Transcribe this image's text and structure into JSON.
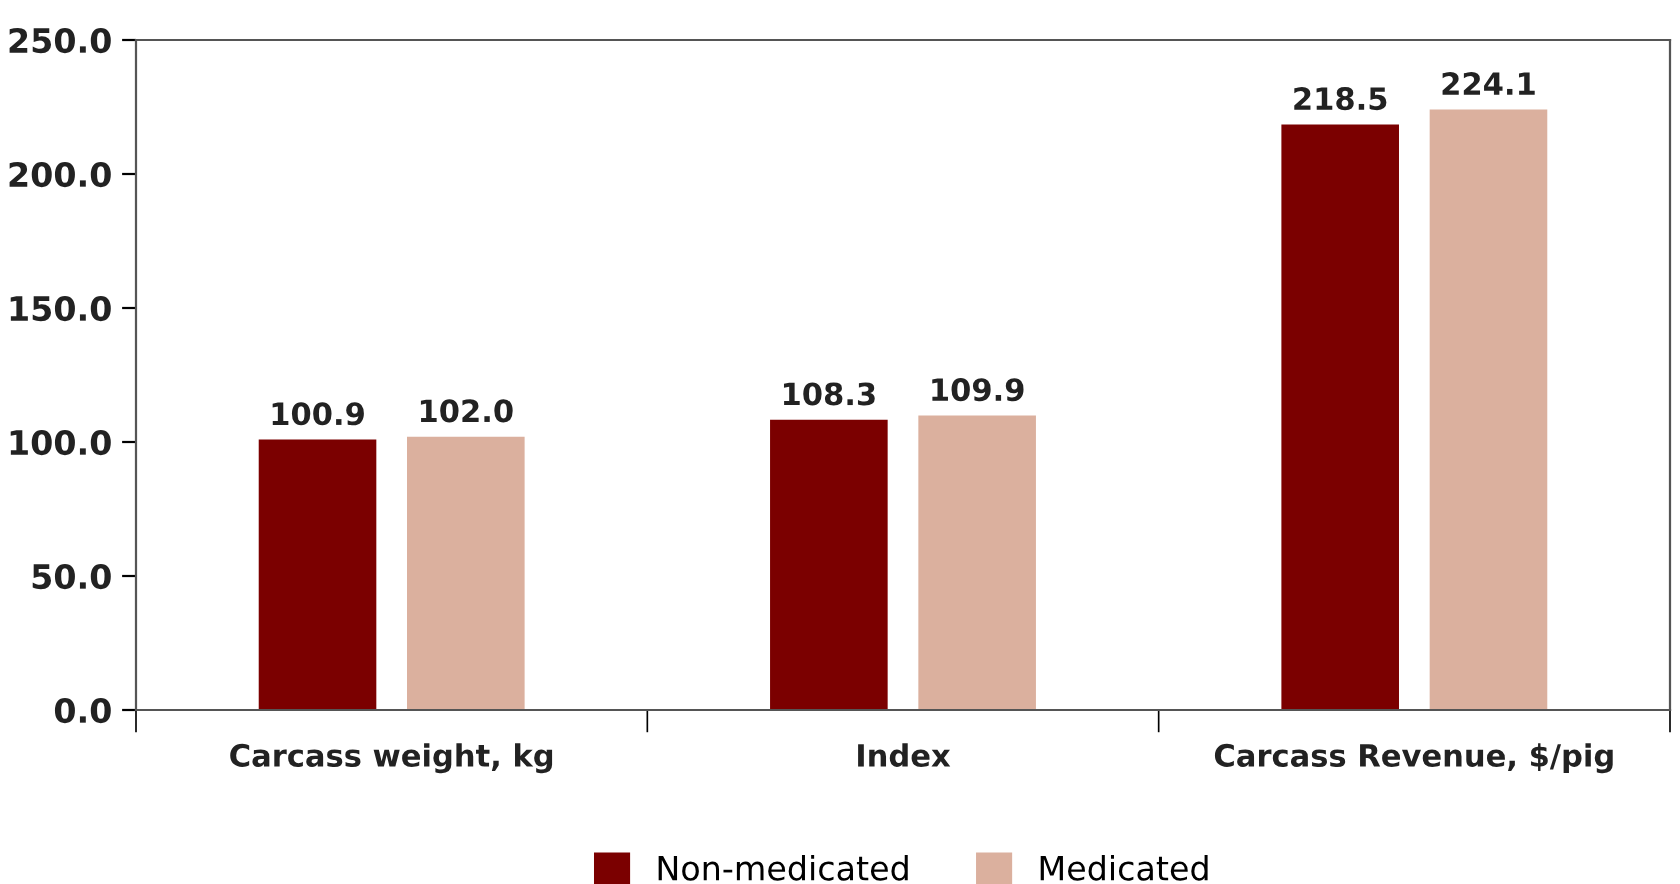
{
  "chart_data": {
    "type": "bar",
    "categories": [
      "Carcass weight, kg",
      "Index",
      "Carcass Revenue, $/pig"
    ],
    "series": [
      {
        "name": "Non-medicated",
        "color": "#7b0000",
        "values": [
          100.9,
          108.3,
          218.5
        ],
        "value_labels": [
          "100.9",
          "108.3",
          "218.5"
        ]
      },
      {
        "name": "Medicated",
        "color": "#dbb09e",
        "values": [
          102.0,
          109.9,
          224.1
        ],
        "value_labels": [
          "102.0",
          "109.9",
          "224.1"
        ]
      }
    ],
    "ylim": [
      0,
      250
    ],
    "yticks": [
      {
        "value": 0,
        "label": "0.0"
      },
      {
        "value": 50,
        "label": "50.0"
      },
      {
        "value": 100,
        "label": "100.0"
      },
      {
        "value": 150,
        "label": "150.0"
      },
      {
        "value": 200,
        "label": "200.0"
      },
      {
        "value": 250,
        "label": "250.0"
      }
    ],
    "grid": false,
    "legend": "bottom"
  }
}
